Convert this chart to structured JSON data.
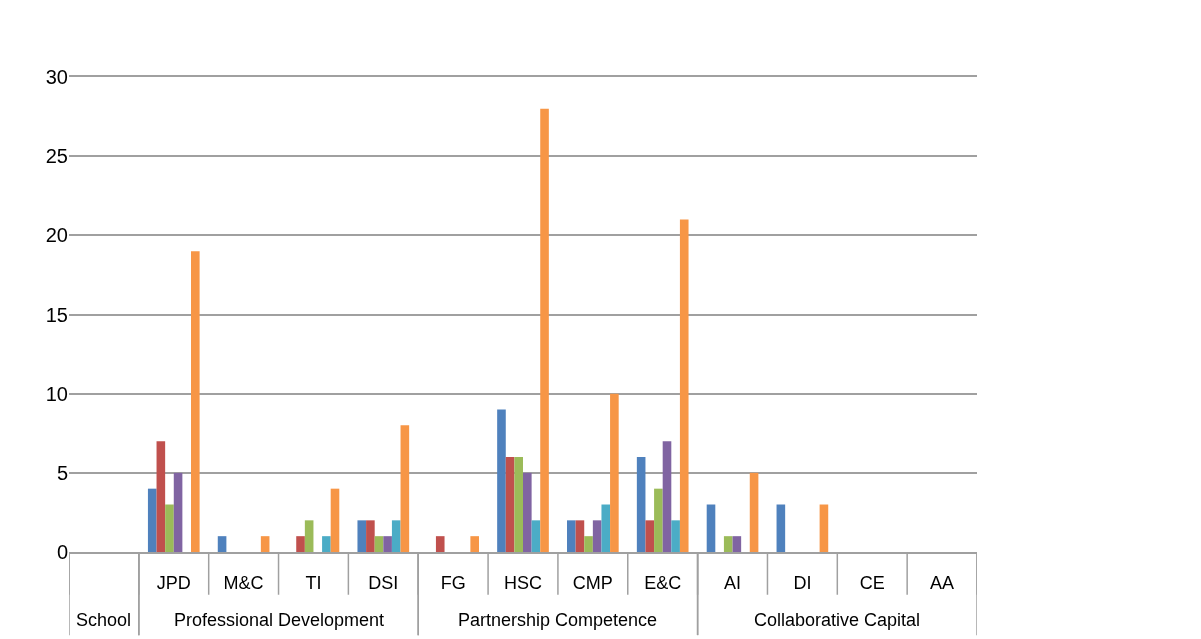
{
  "chart_data": {
    "type": "bar",
    "categories": [
      null,
      "JPD",
      "M&C",
      "TI",
      "DSI",
      "FG",
      "HSC",
      "CMP",
      "E&C",
      "AI",
      "DI",
      "CE",
      "AA"
    ],
    "series": [
      {
        "color": "#4f81bd",
        "values": [
          0,
          4,
          1,
          0,
          2,
          0,
          9,
          2,
          6,
          3,
          3,
          0,
          0
        ]
      },
      {
        "color": "#c0504d",
        "values": [
          0,
          7,
          0,
          1,
          2,
          1,
          6,
          2,
          2,
          0,
          0,
          0,
          0
        ]
      },
      {
        "color": "#9bbb59",
        "values": [
          0,
          3,
          0,
          2,
          1,
          0,
          6,
          1,
          4,
          1,
          0,
          0,
          0
        ]
      },
      {
        "color": "#8064a2",
        "values": [
          0,
          5,
          0,
          0,
          1,
          0,
          5,
          2,
          7,
          1,
          0,
          0,
          0
        ]
      },
      {
        "color": "#4bacc6",
        "values": [
          0,
          0,
          0,
          1,
          2,
          0,
          2,
          3,
          2,
          0,
          0,
          0,
          0
        ]
      },
      {
        "color": "#f79646",
        "values": [
          0,
          19,
          1,
          4,
          8,
          1,
          28,
          10,
          21,
          5,
          3,
          0,
          0
        ]
      }
    ],
    "annotations": [
      "School",
      "Professional Development",
      "Partnership Competence",
      "Collaborative Capital"
    ],
    "ylim": [
      0,
      30
    ],
    "yticks": [
      0,
      5,
      10,
      15,
      20,
      25,
      30
    ],
    "grid": "y"
  }
}
